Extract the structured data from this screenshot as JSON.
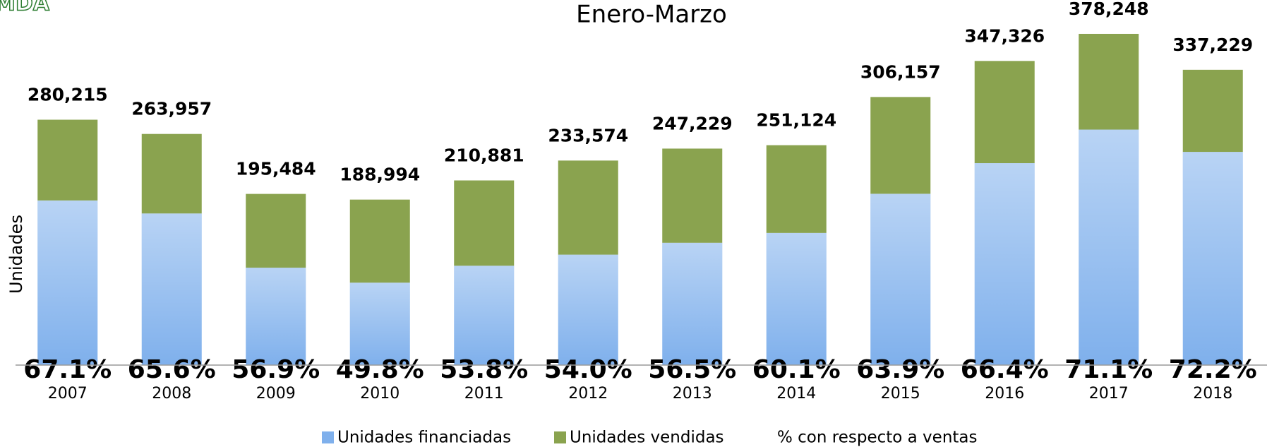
{
  "chart_data": {
    "type": "stacked_bar",
    "logo": "MDA",
    "title": "Enero-Marzo",
    "ylabel": "Unidades",
    "categories": [
      "2007",
      "2008",
      "2009",
      "2010",
      "2011",
      "2012",
      "2013",
      "2014",
      "2015",
      "2016",
      "2017",
      "2018"
    ],
    "series": [
      {
        "name": "Unidades financiadas",
        "color": "#7fb0ec",
        "values": [
          188024,
          173156,
          111230,
          94119,
          113454,
          126130,
          139684,
          150926,
          195634,
          230624,
          268934,
          243479
        ]
      },
      {
        "name": "Unidades vendidas",
        "color": "#8aa34f",
        "values": [
          92191,
          90801,
          84254,
          94875,
          97427,
          107444,
          107545,
          100198,
          110523,
          116702,
          109314,
          93750
        ]
      }
    ],
    "totals": [
      280215,
      263957,
      195484,
      188994,
      210881,
      233574,
      247229,
      251124,
      306157,
      347326,
      378248,
      337229
    ],
    "total_labels": [
      "280,215",
      "263,957",
      "195,484",
      "188,994",
      "210,881",
      "233,574",
      "247,229",
      "251,124",
      "306,157",
      "347,326",
      "378,248",
      "337,229"
    ],
    "percent_series": {
      "name": "% con respecto a ventas",
      "values": [
        67.1,
        65.6,
        56.9,
        49.8,
        53.8,
        54.0,
        56.5,
        60.1,
        63.9,
        66.4,
        71.1,
        72.2
      ],
      "value_labels": [
        "67.1%",
        "65.6%",
        "56.9%",
        "49.8%",
        "53.8%",
        "54.0%",
        "56.5%",
        "60.1%",
        "63.9%",
        "66.4%",
        "71.1%",
        "72.2%"
      ]
    },
    "ylim": [
      0,
      400000
    ]
  }
}
